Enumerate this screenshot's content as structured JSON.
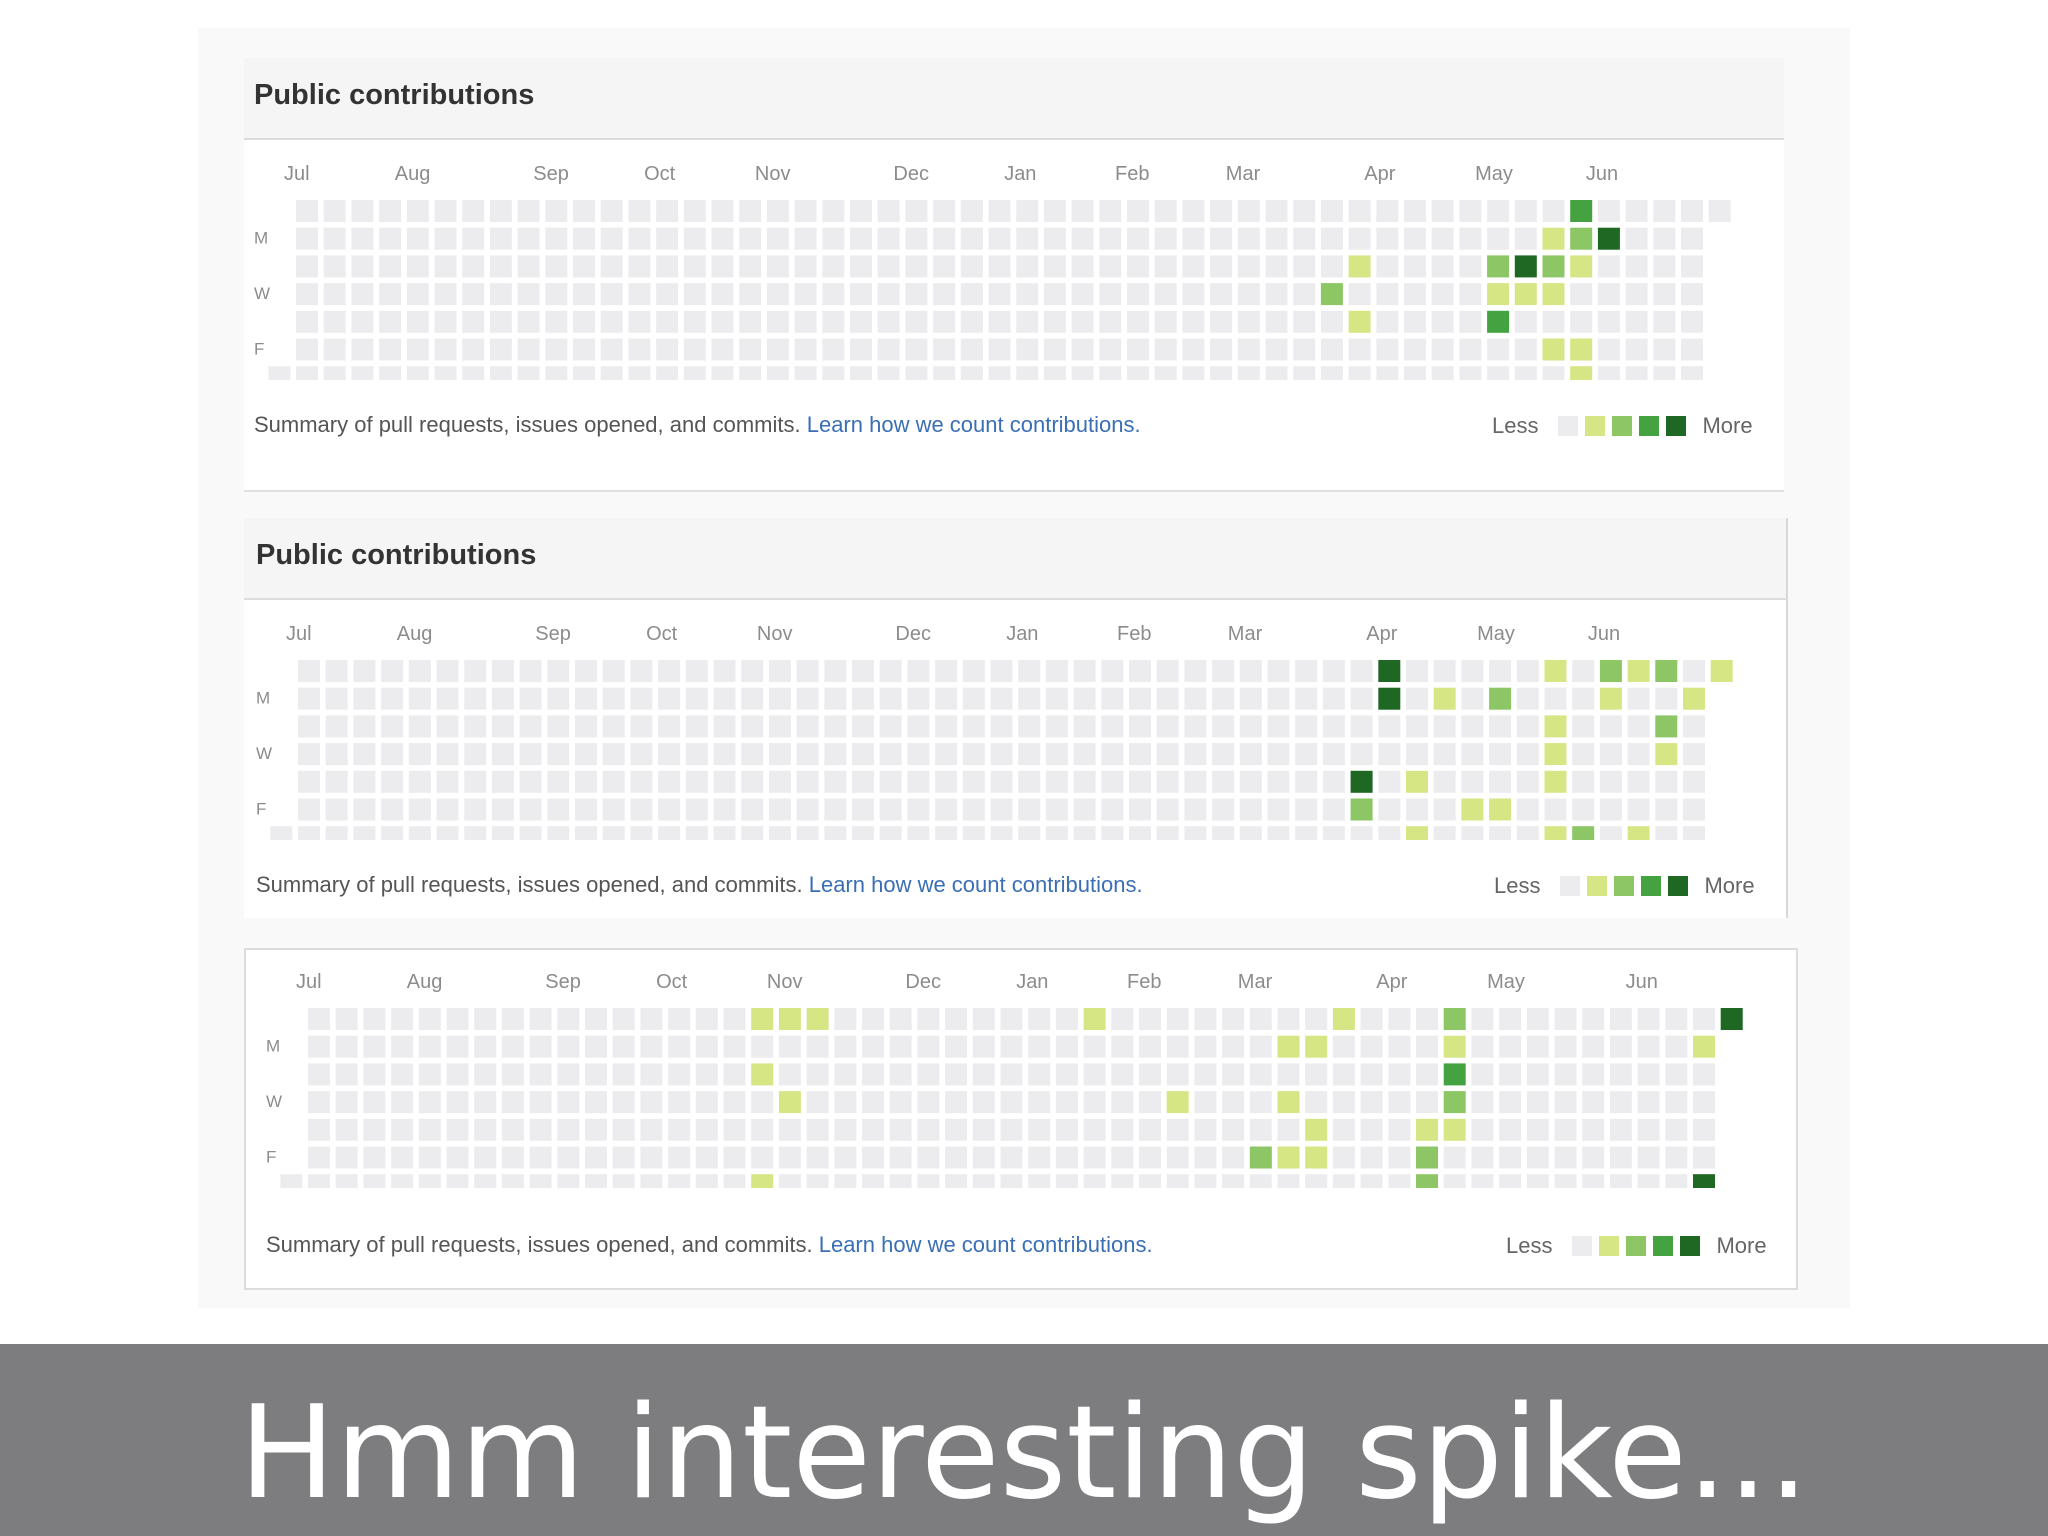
{
  "colors": {
    "panel": "#f9f9f9",
    "level0": "#ececee",
    "level1": "#d6e685",
    "level2": "#8cc665",
    "level3": "#44a340",
    "level4": "#1e6823",
    "link": "#3a6fb5",
    "caption_bar": "#7d7d7f"
  },
  "calendars": [
    {
      "title": "Public contributions",
      "months": [
        "Jul",
        "Aug",
        "Sep",
        "Oct",
        "Nov",
        "Dec",
        "Jan",
        "Feb",
        "Mar",
        "Apr",
        "May",
        "Jun"
      ],
      "month_weeks": [
        0,
        4,
        9,
        13,
        17,
        22,
        26,
        30,
        34,
        39,
        43,
        47
      ],
      "day_labels": [
        "M",
        "W",
        "F"
      ],
      "summary_text": "Summary of pull requests, issues opened, and commits.",
      "link_text": "Learn how we count contributions.",
      "legend_less": "Less",
      "legend_more": "More",
      "cells": [
        {
          "week": 47,
          "day": 0,
          "level": 3
        },
        {
          "week": 46,
          "day": 1,
          "level": 1
        },
        {
          "week": 47,
          "day": 1,
          "level": 2
        },
        {
          "week": 48,
          "day": 1,
          "level": 4
        },
        {
          "week": 39,
          "day": 2,
          "level": 1
        },
        {
          "week": 44,
          "day": 2,
          "level": 2
        },
        {
          "week": 45,
          "day": 2,
          "level": 4
        },
        {
          "week": 46,
          "day": 2,
          "level": 2
        },
        {
          "week": 47,
          "day": 2,
          "level": 1
        },
        {
          "week": 38,
          "day": 3,
          "level": 2
        },
        {
          "week": 44,
          "day": 3,
          "level": 1
        },
        {
          "week": 45,
          "day": 3,
          "level": 1
        },
        {
          "week": 46,
          "day": 3,
          "level": 1
        },
        {
          "week": 39,
          "day": 4,
          "level": 1
        },
        {
          "week": 44,
          "day": 4,
          "level": 3
        },
        {
          "week": 46,
          "day": 5,
          "level": 1
        },
        {
          "week": 47,
          "day": 5,
          "level": 1
        },
        {
          "week": 47,
          "day": 6,
          "level": 1
        }
      ]
    },
    {
      "title": "Public contributions",
      "months": [
        "Jul",
        "Aug",
        "Sep",
        "Oct",
        "Nov",
        "Dec",
        "Jan",
        "Feb",
        "Mar",
        "Apr",
        "May",
        "Jun"
      ],
      "month_weeks": [
        0,
        4,
        9,
        13,
        17,
        22,
        26,
        30,
        34,
        39,
        43,
        47
      ],
      "day_labels": [
        "M",
        "W",
        "F"
      ],
      "summary_text": "Summary of pull requests, issues opened, and commits.",
      "link_text": "Learn how we count contributions.",
      "legend_less": "Less",
      "legend_more": "More",
      "cells": [
        {
          "week": 40,
          "day": 0,
          "level": 4
        },
        {
          "week": 46,
          "day": 0,
          "level": 1
        },
        {
          "week": 48,
          "day": 0,
          "level": 2
        },
        {
          "week": 49,
          "day": 0,
          "level": 1
        },
        {
          "week": 50,
          "day": 0,
          "level": 2
        },
        {
          "week": 52,
          "day": 0,
          "level": 1
        },
        {
          "week": 40,
          "day": 1,
          "level": 4
        },
        {
          "week": 42,
          "day": 1,
          "level": 1
        },
        {
          "week": 44,
          "day": 1,
          "level": 2
        },
        {
          "week": 48,
          "day": 1,
          "level": 1
        },
        {
          "week": 51,
          "day": 1,
          "level": 1
        },
        {
          "week": 46,
          "day": 2,
          "level": 1
        },
        {
          "week": 50,
          "day": 2,
          "level": 2
        },
        {
          "week": 46,
          "day": 3,
          "level": 1
        },
        {
          "week": 50,
          "day": 3,
          "level": 1
        },
        {
          "week": 39,
          "day": 4,
          "level": 4
        },
        {
          "week": 41,
          "day": 4,
          "level": 1
        },
        {
          "week": 46,
          "day": 4,
          "level": 1
        },
        {
          "week": 52,
          "day": 4,
          "level": 1
        },
        {
          "week": 39,
          "day": 5,
          "level": 2
        },
        {
          "week": 43,
          "day": 5,
          "level": 1
        },
        {
          "week": 44,
          "day": 5,
          "level": 1
        },
        {
          "week": 52,
          "day": 5,
          "level": 1
        },
        {
          "week": 41,
          "day": 6,
          "level": 1
        },
        {
          "week": 46,
          "day": 6,
          "level": 1
        },
        {
          "week": 47,
          "day": 6,
          "level": 2
        },
        {
          "week": 49,
          "day": 6,
          "level": 1
        },
        {
          "week": 52,
          "day": 6,
          "level": 1
        }
      ]
    },
    {
      "title": "",
      "months": [
        "Jul",
        "Aug",
        "Sep",
        "Oct",
        "Nov",
        "Dec",
        "Jan",
        "Feb",
        "Mar",
        "Apr",
        "May",
        "Jun"
      ],
      "month_weeks": [
        0,
        4,
        9,
        13,
        17,
        22,
        26,
        30,
        34,
        39,
        43,
        48
      ],
      "day_labels": [
        "M",
        "W",
        "F"
      ],
      "summary_text": "Summary of pull requests, issues opened, and commits.",
      "link_text": "Learn how we count contributions.",
      "legend_less": "Less",
      "legend_more": "More",
      "cells": [
        {
          "week": 17,
          "day": 0,
          "level": 1
        },
        {
          "week": 18,
          "day": 0,
          "level": 1
        },
        {
          "week": 19,
          "day": 0,
          "level": 1
        },
        {
          "week": 29,
          "day": 0,
          "level": 1
        },
        {
          "week": 38,
          "day": 0,
          "level": 1
        },
        {
          "week": 42,
          "day": 0,
          "level": 2
        },
        {
          "week": 52,
          "day": 0,
          "level": 4
        },
        {
          "week": 36,
          "day": 1,
          "level": 1
        },
        {
          "week": 37,
          "day": 1,
          "level": 1
        },
        {
          "week": 42,
          "day": 1,
          "level": 1
        },
        {
          "week": 51,
          "day": 1,
          "level": 1
        },
        {
          "week": 17,
          "day": 2,
          "level": 1
        },
        {
          "week": 42,
          "day": 2,
          "level": 3
        },
        {
          "week": 18,
          "day": 3,
          "level": 1
        },
        {
          "week": 32,
          "day": 3,
          "level": 1
        },
        {
          "week": 36,
          "day": 3,
          "level": 1
        },
        {
          "week": 42,
          "day": 3,
          "level": 2
        },
        {
          "week": 37,
          "day": 4,
          "level": 1
        },
        {
          "week": 41,
          "day": 4,
          "level": 1
        },
        {
          "week": 42,
          "day": 4,
          "level": 1
        },
        {
          "week": 35,
          "day": 5,
          "level": 2
        },
        {
          "week": 36,
          "day": 5,
          "level": 1
        },
        {
          "week": 37,
          "day": 5,
          "level": 1
        },
        {
          "week": 41,
          "day": 5,
          "level": 2
        },
        {
          "week": 17,
          "day": 6,
          "level": 1
        },
        {
          "week": 41,
          "day": 6,
          "level": 2
        },
        {
          "week": 51,
          "day": 6,
          "level": 4
        }
      ]
    }
  ],
  "caption": "Hmm interesting spike..."
}
